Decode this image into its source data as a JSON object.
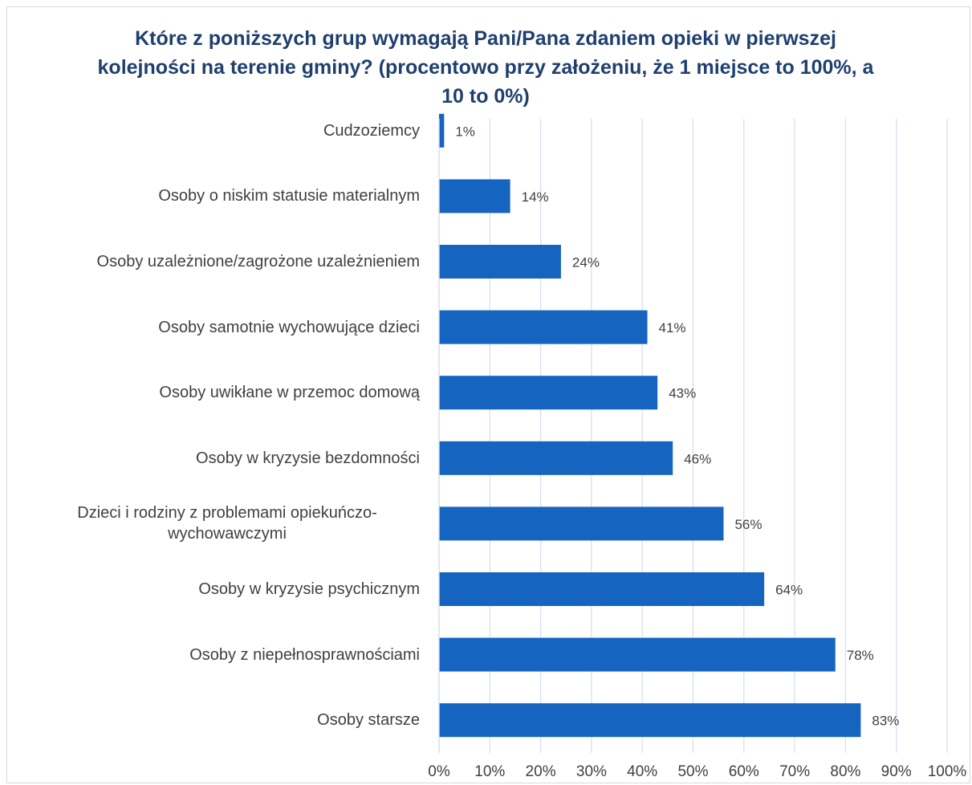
{
  "chart_data": {
    "type": "bar",
    "orientation": "horizontal",
    "title": "Które z poniższych grup wymagają Pani/Pana zdaniem opieki w pierwszej kolejności na terenie gminy? (procentowo przy założeniu, że 1 miejsce to 100%, a 10 to 0%)",
    "categories": [
      "Cudzoziemcy",
      "Osoby o niskim statusie materialnym",
      "Osoby uzależnione/zagrożone uzależnieniem",
      "Osoby samotnie wychowujące dzieci",
      "Osoby uwikłane w przemoc domową",
      "Osoby w kryzysie bezdomności",
      "Dzieci i rodziny z problemami opiekuńczo-wychowawczymi",
      "Osoby w kryzysie psychicznym",
      "Osoby z niepełnosprawnościami",
      "Osoby starsze"
    ],
    "values": [
      1,
      14,
      24,
      41,
      43,
      46,
      56,
      64,
      78,
      83
    ],
    "value_labels": [
      "1%",
      "14%",
      "24%",
      "41%",
      "43%",
      "46%",
      "56%",
      "64%",
      "78%",
      "83%"
    ],
    "color": "#1565c0",
    "xlim": [
      0,
      100
    ],
    "xticks": [
      {
        "value": 0,
        "label": "0%"
      },
      {
        "value": 10,
        "label": "10%"
      },
      {
        "value": 20,
        "label": "20%"
      },
      {
        "value": 30,
        "label": "30%"
      },
      {
        "value": 40,
        "label": "40%"
      },
      {
        "value": 50,
        "label": "50%"
      },
      {
        "value": 60,
        "label": "60%"
      },
      {
        "value": 70,
        "label": "70%"
      },
      {
        "value": 80,
        "label": "80%"
      },
      {
        "value": 90,
        "label": "90%"
      },
      {
        "value": 100,
        "label": "100%"
      }
    ],
    "grid": true
  }
}
